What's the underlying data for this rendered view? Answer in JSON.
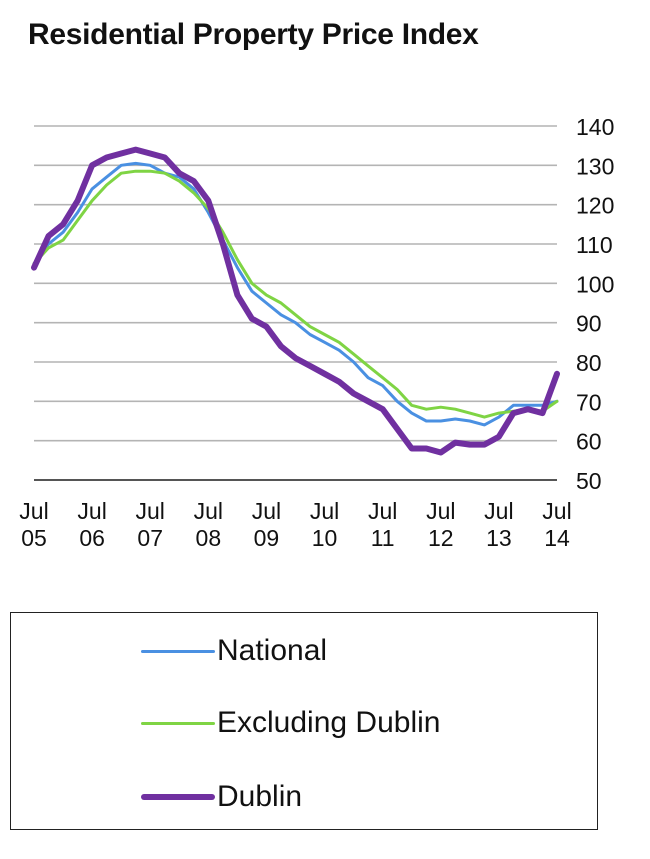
{
  "chart_data": {
    "type": "line",
    "title": "Residential Property Price Index",
    "xlabel": "",
    "ylabel": "",
    "x_ticks": [
      {
        "label": [
          "Jul",
          "05"
        ],
        "date": 2005.5
      },
      {
        "label": [
          "Jul",
          "06"
        ],
        "date": 2006.5
      },
      {
        "label": [
          "Jul",
          "07"
        ],
        "date": 2007.5
      },
      {
        "label": [
          "Jul",
          "08"
        ],
        "date": 2008.5
      },
      {
        "label": [
          "Jul",
          "09"
        ],
        "date": 2009.5
      },
      {
        "label": [
          "Jul",
          "10"
        ],
        "date": 2010.5
      },
      {
        "label": [
          "Jul",
          "11"
        ],
        "date": 2011.5
      },
      {
        "label": [
          "Jul",
          "12"
        ],
        "date": 2012.5
      },
      {
        "label": [
          "Jul",
          "13"
        ],
        "date": 2013.5
      },
      {
        "label": [
          "Jul",
          "14"
        ],
        "date": 2014.5
      }
    ],
    "xlim": [
      2005.5,
      2014.5
    ],
    "ylim": [
      50,
      140
    ],
    "y_ticks": [
      50,
      60,
      70,
      80,
      90,
      100,
      110,
      120,
      130,
      140
    ],
    "y_axis_position": "right",
    "grid": true,
    "legend_position": "bottom",
    "series": [
      {
        "name": "National",
        "color": "#4a90e2",
        "width": 3,
        "points": [
          [
            2005.5,
            105
          ],
          [
            2005.75,
            110
          ],
          [
            2006.0,
            113
          ],
          [
            2006.25,
            118
          ],
          [
            2006.5,
            124
          ],
          [
            2006.75,
            127
          ],
          [
            2007.0,
            130
          ],
          [
            2007.25,
            130.5
          ],
          [
            2007.5,
            130
          ],
          [
            2007.75,
            128
          ],
          [
            2008.0,
            127
          ],
          [
            2008.25,
            124
          ],
          [
            2008.5,
            118
          ],
          [
            2008.75,
            111
          ],
          [
            2009.0,
            104
          ],
          [
            2009.25,
            98
          ],
          [
            2009.5,
            95
          ],
          [
            2009.75,
            92
          ],
          [
            2010.0,
            90
          ],
          [
            2010.25,
            87
          ],
          [
            2010.5,
            85
          ],
          [
            2010.75,
            83
          ],
          [
            2011.0,
            80
          ],
          [
            2011.25,
            76
          ],
          [
            2011.5,
            74
          ],
          [
            2011.75,
            70
          ],
          [
            2012.0,
            67
          ],
          [
            2012.25,
            65
          ],
          [
            2012.5,
            65
          ],
          [
            2012.75,
            65.5
          ],
          [
            2013.0,
            65
          ],
          [
            2013.25,
            64
          ],
          [
            2013.5,
            66
          ],
          [
            2013.75,
            69
          ],
          [
            2014.0,
            69
          ],
          [
            2014.25,
            69
          ],
          [
            2014.5,
            70
          ]
        ]
      },
      {
        "name": "Excluding Dublin",
        "color": "#7fd444",
        "width": 3,
        "points": [
          [
            2005.5,
            105
          ],
          [
            2005.75,
            109
          ],
          [
            2006.0,
            111
          ],
          [
            2006.25,
            116
          ],
          [
            2006.5,
            121
          ],
          [
            2006.75,
            125
          ],
          [
            2007.0,
            128
          ],
          [
            2007.25,
            128.5
          ],
          [
            2007.5,
            128.5
          ],
          [
            2007.75,
            128
          ],
          [
            2008.0,
            126
          ],
          [
            2008.25,
            123
          ],
          [
            2008.5,
            119
          ],
          [
            2008.75,
            113
          ],
          [
            2009.0,
            106
          ],
          [
            2009.25,
            100
          ],
          [
            2009.5,
            97
          ],
          [
            2009.75,
            95
          ],
          [
            2010.0,
            92
          ],
          [
            2010.25,
            89
          ],
          [
            2010.5,
            87
          ],
          [
            2010.75,
            85
          ],
          [
            2011.0,
            82
          ],
          [
            2011.25,
            79
          ],
          [
            2011.5,
            76
          ],
          [
            2011.75,
            73
          ],
          [
            2012.0,
            69
          ],
          [
            2012.25,
            68
          ],
          [
            2012.5,
            68.5
          ],
          [
            2012.75,
            68
          ],
          [
            2013.0,
            67
          ],
          [
            2013.25,
            66
          ],
          [
            2013.5,
            67
          ],
          [
            2013.75,
            67.5
          ],
          [
            2014.0,
            68
          ],
          [
            2014.25,
            67.5
          ],
          [
            2014.5,
            70
          ]
        ]
      },
      {
        "name": "Dublin",
        "color": "#7030a0",
        "width": 6,
        "points": [
          [
            2005.5,
            104
          ],
          [
            2005.75,
            112
          ],
          [
            2006.0,
            115
          ],
          [
            2006.25,
            121
          ],
          [
            2006.5,
            130
          ],
          [
            2006.75,
            132
          ],
          [
            2007.0,
            133
          ],
          [
            2007.25,
            134
          ],
          [
            2007.5,
            133
          ],
          [
            2007.75,
            132
          ],
          [
            2008.0,
            128
          ],
          [
            2008.25,
            126
          ],
          [
            2008.5,
            121
          ],
          [
            2008.75,
            110
          ],
          [
            2009.0,
            97
          ],
          [
            2009.25,
            91
          ],
          [
            2009.5,
            89
          ],
          [
            2009.75,
            84
          ],
          [
            2010.0,
            81
          ],
          [
            2010.25,
            79
          ],
          [
            2010.5,
            77
          ],
          [
            2010.75,
            75
          ],
          [
            2011.0,
            72
          ],
          [
            2011.25,
            70
          ],
          [
            2011.5,
            68
          ],
          [
            2011.75,
            63
          ],
          [
            2012.0,
            58
          ],
          [
            2012.25,
            58
          ],
          [
            2012.5,
            57
          ],
          [
            2012.75,
            59.5
          ],
          [
            2013.0,
            59
          ],
          [
            2013.25,
            59
          ],
          [
            2013.5,
            61
          ],
          [
            2013.75,
            67
          ],
          [
            2014.0,
            68
          ],
          [
            2014.25,
            67
          ],
          [
            2014.5,
            77
          ]
        ]
      }
    ]
  }
}
